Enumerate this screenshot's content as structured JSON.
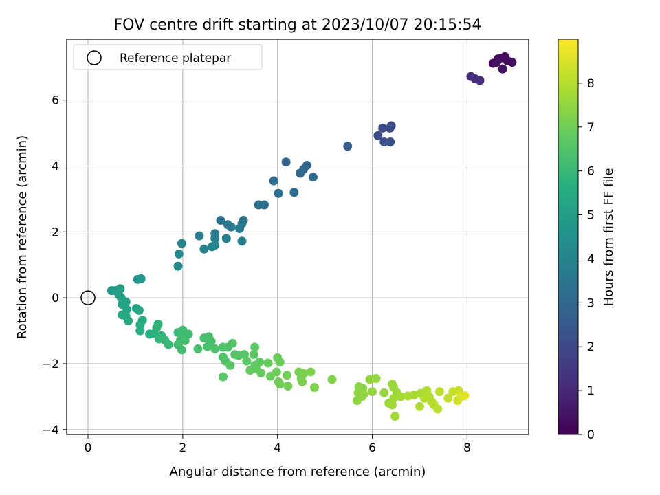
{
  "chart_data": {
    "type": "scatter",
    "title": "FOV centre drift starting at 2023/10/07 20:15:54",
    "xlabel": "Angular distance from reference (arcmin)",
    "ylabel": "Rotation from reference (arcmin)",
    "xlim": [
      -0.45,
      9.3
    ],
    "ylim": [
      -4.15,
      7.85
    ],
    "xticks": [
      0,
      2,
      4,
      6,
      8
    ],
    "yticks": [
      -4,
      -2,
      0,
      2,
      4,
      6
    ],
    "grid": true,
    "legend": {
      "placement": "upper left",
      "entries": [
        "Reference platepar"
      ]
    },
    "reference_point": {
      "x": 0,
      "y": 0,
      "label": "Reference platepar"
    },
    "colorbar": {
      "label": "Hours from first FF file",
      "min": 0,
      "max": 9,
      "ticks": [
        0,
        1,
        2,
        3,
        4,
        5,
        6,
        7,
        8
      ],
      "colormap": "viridis"
    },
    "points": [
      {
        "x": 8.55,
        "y": 7.12,
        "h": 0.1
      },
      {
        "x": 8.65,
        "y": 7.25,
        "h": 0.15
      },
      {
        "x": 8.72,
        "y": 7.28,
        "h": 0.2
      },
      {
        "x": 8.8,
        "y": 7.32,
        "h": 0.25
      },
      {
        "x": 8.85,
        "y": 7.2,
        "h": 0.3
      },
      {
        "x": 8.95,
        "y": 7.15,
        "h": 0.35
      },
      {
        "x": 8.75,
        "y": 6.95,
        "h": 0.4
      },
      {
        "x": 8.62,
        "y": 7.15,
        "h": 0.45
      },
      {
        "x": 8.08,
        "y": 6.72,
        "h": 1.1
      },
      {
        "x": 8.17,
        "y": 6.65,
        "h": 1.15
      },
      {
        "x": 8.27,
        "y": 6.6,
        "h": 1.2
      },
      {
        "x": 6.4,
        "y": 5.22,
        "h": 2.0
      },
      {
        "x": 6.37,
        "y": 5.15,
        "h": 2.05
      },
      {
        "x": 6.22,
        "y": 5.15,
        "h": 2.1
      },
      {
        "x": 6.12,
        "y": 4.92,
        "h": 2.15
      },
      {
        "x": 6.25,
        "y": 4.73,
        "h": 2.2
      },
      {
        "x": 6.38,
        "y": 4.73,
        "h": 2.25
      },
      {
        "x": 5.48,
        "y": 4.6,
        "h": 2.7
      },
      {
        "x": 4.18,
        "y": 4.12,
        "h": 2.9
      },
      {
        "x": 4.62,
        "y": 4.02,
        "h": 2.95
      },
      {
        "x": 4.55,
        "y": 3.9,
        "h": 3.0
      },
      {
        "x": 4.48,
        "y": 3.78,
        "h": 3.05
      },
      {
        "x": 4.75,
        "y": 3.66,
        "h": 3.1
      },
      {
        "x": 3.92,
        "y": 3.55,
        "h": 3.15
      },
      {
        "x": 4.35,
        "y": 3.2,
        "h": 3.2
      },
      {
        "x": 4.02,
        "y": 3.17,
        "h": 3.25
      },
      {
        "x": 3.6,
        "y": 2.82,
        "h": 3.3
      },
      {
        "x": 3.72,
        "y": 2.82,
        "h": 3.35
      },
      {
        "x": 2.8,
        "y": 2.35,
        "h": 3.4
      },
      {
        "x": 3.28,
        "y": 2.35,
        "h": 3.45
      },
      {
        "x": 3.25,
        "y": 2.25,
        "h": 3.5
      },
      {
        "x": 2.95,
        "y": 2.22,
        "h": 3.55
      },
      {
        "x": 3.02,
        "y": 2.15,
        "h": 3.6
      },
      {
        "x": 3.2,
        "y": 2.1,
        "h": 3.65
      },
      {
        "x": 2.68,
        "y": 1.95,
        "h": 3.7
      },
      {
        "x": 2.35,
        "y": 1.88,
        "h": 3.75
      },
      {
        "x": 2.68,
        "y": 1.8,
        "h": 3.8
      },
      {
        "x": 2.92,
        "y": 1.8,
        "h": 3.85
      },
      {
        "x": 3.25,
        "y": 1.72,
        "h": 3.9
      },
      {
        "x": 1.98,
        "y": 1.65,
        "h": 3.95
      },
      {
        "x": 2.68,
        "y": 1.6,
        "h": 4.0
      },
      {
        "x": 2.62,
        "y": 1.55,
        "h": 4.05
      },
      {
        "x": 2.45,
        "y": 1.48,
        "h": 4.1
      },
      {
        "x": 1.92,
        "y": 1.33,
        "h": 4.15
      },
      {
        "x": 1.9,
        "y": 0.96,
        "h": 4.2
      },
      {
        "x": 1.05,
        "y": 0.56,
        "h": 4.7
      },
      {
        "x": 1.12,
        "y": 0.58,
        "h": 4.75
      },
      {
        "x": 0.5,
        "y": 0.22,
        "h": 4.85
      },
      {
        "x": 0.58,
        "y": 0.22,
        "h": 4.9
      },
      {
        "x": 0.68,
        "y": 0.28,
        "h": 4.95
      },
      {
        "x": 0.65,
        "y": 0.1,
        "h": 5.0
      },
      {
        "x": 0.7,
        "y": 0.0,
        "h": 5.05
      },
      {
        "x": 0.8,
        "y": -0.12,
        "h": 5.1
      },
      {
        "x": 0.72,
        "y": -0.2,
        "h": 5.15
      },
      {
        "x": 0.82,
        "y": -0.35,
        "h": 5.2
      },
      {
        "x": 1.02,
        "y": -0.32,
        "h": 5.25
      },
      {
        "x": 1.08,
        "y": -0.38,
        "h": 5.3
      },
      {
        "x": 0.72,
        "y": -0.52,
        "h": 5.35
      },
      {
        "x": 0.8,
        "y": -0.55,
        "h": 5.4
      },
      {
        "x": 0.85,
        "y": -0.7,
        "h": 5.45
      },
      {
        "x": 1.15,
        "y": -0.68,
        "h": 5.5
      },
      {
        "x": 1.1,
        "y": -0.82,
        "h": 5.55
      },
      {
        "x": 1.1,
        "y": -1.0,
        "h": 5.6
      },
      {
        "x": 1.3,
        "y": -1.1,
        "h": 5.65
      },
      {
        "x": 1.4,
        "y": -1.08,
        "h": 5.7
      },
      {
        "x": 1.48,
        "y": -0.8,
        "h": 5.75
      },
      {
        "x": 1.45,
        "y": -0.9,
        "h": 5.8
      },
      {
        "x": 1.55,
        "y": -1.15,
        "h": 5.85
      },
      {
        "x": 1.5,
        "y": -1.25,
        "h": 5.9
      },
      {
        "x": 1.62,
        "y": -1.28,
        "h": 5.95
      },
      {
        "x": 1.7,
        "y": -1.42,
        "h": 6.0
      },
      {
        "x": 1.9,
        "y": -1.05,
        "h": 6.05
      },
      {
        "x": 2.0,
        "y": -0.98,
        "h": 6.1
      },
      {
        "x": 2.02,
        "y": -1.15,
        "h": 6.12
      },
      {
        "x": 2.12,
        "y": -1.1,
        "h": 6.15
      },
      {
        "x": 1.95,
        "y": -1.3,
        "h": 6.18
      },
      {
        "x": 1.9,
        "y": -1.42,
        "h": 6.2
      },
      {
        "x": 1.98,
        "y": -1.58,
        "h": 6.22
      },
      {
        "x": 2.05,
        "y": -1.3,
        "h": 6.25
      },
      {
        "x": 2.32,
        "y": -1.55,
        "h": 6.28
      },
      {
        "x": 2.45,
        "y": -1.22,
        "h": 6.3
      },
      {
        "x": 2.55,
        "y": -1.18,
        "h": 6.32
      },
      {
        "x": 2.6,
        "y": -1.32,
        "h": 6.35
      },
      {
        "x": 2.52,
        "y": -1.48,
        "h": 6.38
      },
      {
        "x": 2.68,
        "y": -1.55,
        "h": 6.4
      },
      {
        "x": 2.85,
        "y": -1.5,
        "h": 6.42
      },
      {
        "x": 2.95,
        "y": -1.5,
        "h": 6.45
      },
      {
        "x": 2.85,
        "y": -1.8,
        "h": 6.48
      },
      {
        "x": 2.9,
        "y": -1.92,
        "h": 6.5
      },
      {
        "x": 3.05,
        "y": -1.38,
        "h": 6.52
      },
      {
        "x": 3.1,
        "y": -1.72,
        "h": 6.55
      },
      {
        "x": 3.18,
        "y": -1.75,
        "h": 6.58
      },
      {
        "x": 3.3,
        "y": -1.72,
        "h": 6.6
      },
      {
        "x": 3.0,
        "y": -2.05,
        "h": 6.62
      },
      {
        "x": 2.85,
        "y": -2.4,
        "h": 6.65
      },
      {
        "x": 3.35,
        "y": -1.92,
        "h": 6.68
      },
      {
        "x": 3.52,
        "y": -1.5,
        "h": 6.7
      },
      {
        "x": 3.5,
        "y": -1.72,
        "h": 6.72
      },
      {
        "x": 3.52,
        "y": -2.05,
        "h": 6.75
      },
      {
        "x": 3.62,
        "y": -1.95,
        "h": 6.78
      },
      {
        "x": 3.42,
        "y": -2.2,
        "h": 6.8
      },
      {
        "x": 3.55,
        "y": -2.15,
        "h": 6.82
      },
      {
        "x": 3.65,
        "y": -2.28,
        "h": 6.85
      },
      {
        "x": 3.8,
        "y": -1.98,
        "h": 6.88
      },
      {
        "x": 3.85,
        "y": -2.38,
        "h": 6.9
      },
      {
        "x": 4.0,
        "y": -1.82,
        "h": 6.92
      },
      {
        "x": 4.05,
        "y": -1.95,
        "h": 6.95
      },
      {
        "x": 3.98,
        "y": -2.25,
        "h": 6.98
      },
      {
        "x": 4.02,
        "y": -2.55,
        "h": 7.0
      },
      {
        "x": 4.05,
        "y": -2.62,
        "h": 7.02
      },
      {
        "x": 4.2,
        "y": -2.35,
        "h": 7.05
      },
      {
        "x": 4.22,
        "y": -2.68,
        "h": 7.08
      },
      {
        "x": 4.45,
        "y": -2.25,
        "h": 7.1
      },
      {
        "x": 4.5,
        "y": -2.45,
        "h": 7.12
      },
      {
        "x": 4.52,
        "y": -2.55,
        "h": 7.15
      },
      {
        "x": 4.55,
        "y": -2.3,
        "h": 7.18
      },
      {
        "x": 4.7,
        "y": -2.25,
        "h": 7.2
      },
      {
        "x": 4.78,
        "y": -2.72,
        "h": 7.22
      },
      {
        "x": 5.15,
        "y": -2.48,
        "h": 7.25
      },
      {
        "x": 5.72,
        "y": -2.7,
        "h": 7.35
      },
      {
        "x": 5.8,
        "y": -2.75,
        "h": 7.38
      },
      {
        "x": 5.7,
        "y": -2.88,
        "h": 7.4
      },
      {
        "x": 5.78,
        "y": -3.0,
        "h": 7.42
      },
      {
        "x": 5.68,
        "y": -3.12,
        "h": 7.45
      },
      {
        "x": 5.82,
        "y": -2.92,
        "h": 7.48
      },
      {
        "x": 5.95,
        "y": -2.48,
        "h": 7.5
      },
      {
        "x": 6.08,
        "y": -2.45,
        "h": 7.52
      },
      {
        "x": 6.0,
        "y": -2.85,
        "h": 7.55
      },
      {
        "x": 6.25,
        "y": -2.88,
        "h": 7.58
      },
      {
        "x": 6.42,
        "y": -2.62,
        "h": 7.6
      },
      {
        "x": 6.45,
        "y": -2.72,
        "h": 7.62
      },
      {
        "x": 6.52,
        "y": -2.88,
        "h": 7.65
      },
      {
        "x": 6.35,
        "y": -3.2,
        "h": 7.68
      },
      {
        "x": 6.45,
        "y": -3.05,
        "h": 7.7
      },
      {
        "x": 6.42,
        "y": -3.25,
        "h": 7.72
      },
      {
        "x": 6.48,
        "y": -3.6,
        "h": 7.75
      },
      {
        "x": 6.6,
        "y": -3.0,
        "h": 7.78
      },
      {
        "x": 6.75,
        "y": -2.98,
        "h": 7.8
      },
      {
        "x": 6.88,
        "y": -2.95,
        "h": 7.82
      },
      {
        "x": 7.02,
        "y": -2.9,
        "h": 7.85
      },
      {
        "x": 7.15,
        "y": -2.82,
        "h": 7.88
      },
      {
        "x": 7.1,
        "y": -3.05,
        "h": 7.9
      },
      {
        "x": 7.0,
        "y": -3.3,
        "h": 7.92
      },
      {
        "x": 7.2,
        "y": -3.0,
        "h": 7.95
      },
      {
        "x": 7.25,
        "y": -3.15,
        "h": 7.98
      },
      {
        "x": 7.3,
        "y": -3.25,
        "h": 8.0
      },
      {
        "x": 7.38,
        "y": -3.38,
        "h": 8.05
      },
      {
        "x": 7.42,
        "y": -2.85,
        "h": 8.1
      },
      {
        "x": 7.6,
        "y": -3.05,
        "h": 8.15
      },
      {
        "x": 7.7,
        "y": -2.85,
        "h": 8.2
      },
      {
        "x": 7.82,
        "y": -2.82,
        "h": 8.3
      },
      {
        "x": 7.8,
        "y": -3.12,
        "h": 8.4
      },
      {
        "x": 7.88,
        "y": -3.0,
        "h": 8.5
      },
      {
        "x": 7.95,
        "y": -2.97,
        "h": 8.6
      }
    ]
  }
}
